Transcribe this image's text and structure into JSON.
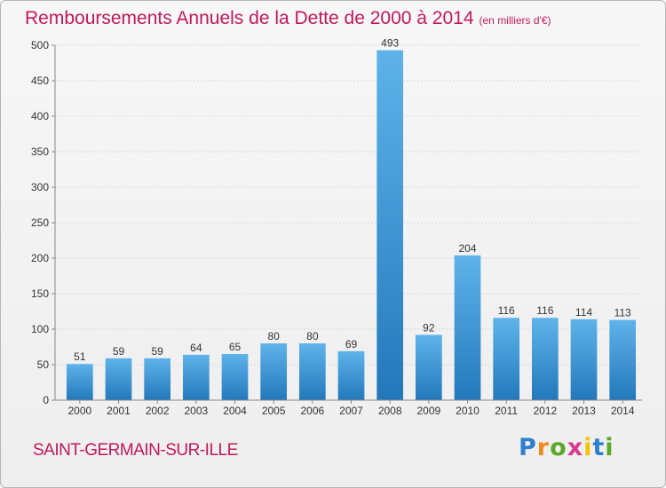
{
  "chart_data": {
    "type": "bar",
    "title": "Remboursements Annuels de la Dette de 2000 à 2014",
    "unit": "(en milliers d'€)",
    "categories": [
      "2000",
      "2001",
      "2002",
      "2003",
      "2004",
      "2005",
      "2006",
      "2007",
      "2008",
      "2009",
      "2010",
      "2011",
      "2012",
      "2013",
      "2014"
    ],
    "values": [
      51,
      59,
      59,
      64,
      65,
      80,
      80,
      69,
      493,
      92,
      204,
      116,
      116,
      114,
      113
    ],
    "ylim": [
      0,
      500
    ],
    "yticks": [
      0,
      50,
      100,
      150,
      200,
      250,
      300,
      350,
      400,
      450,
      500
    ],
    "xlabel": "",
    "ylabel": "",
    "bar_color": "#3d96d8",
    "bar_color_light": "#5fb3ea",
    "bar_color_dark": "#2378bb"
  },
  "commune": "SAINT-GERMAIN-SUR-ILLE",
  "logo": {
    "letters": [
      "P",
      "r",
      "o",
      "x",
      "i",
      "t",
      "i"
    ],
    "colors": [
      "#2f7fd1",
      "#f08a1d",
      "#5aaa2a",
      "#d63c8e",
      "#f5c400",
      "#2f7fd1",
      "#5aaa2a"
    ]
  },
  "colors": {
    "title": "#c2185b",
    "commune": "#c2185b"
  }
}
